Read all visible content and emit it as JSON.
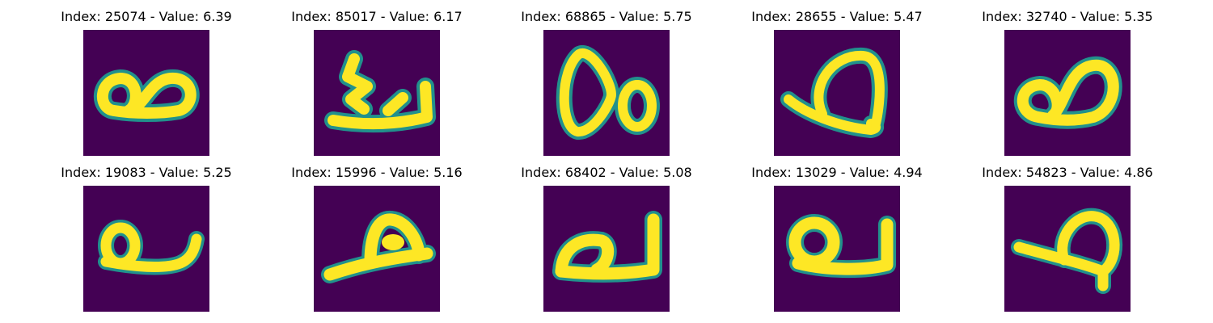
{
  "colors": {
    "background": "#440154",
    "mid": "#21918c",
    "foreground": "#fde725"
  },
  "panels": [
    {
      "title": "Index: 25074 - Value: 6.39",
      "glyph": "double-loop"
    },
    {
      "title": "Index: 85017 - Value: 6.17",
      "glyph": "zigzag-stroke"
    },
    {
      "title": "Index: 68865 - Value: 5.75",
      "glyph": "figure-eight"
    },
    {
      "title": "Index: 28655 - Value: 5.47",
      "glyph": "open-loop-with-tail"
    },
    {
      "title": "Index: 32740 - Value: 5.35",
      "glyph": "double-loop"
    },
    {
      "title": "Index: 19083 - Value: 5.25",
      "glyph": "loop-with-tail"
    },
    {
      "title": "Index: 15996 - Value: 5.16",
      "glyph": "hump-with-stroke"
    },
    {
      "title": "Index: 68402 - Value: 5.08",
      "glyph": "loop-with-tail"
    },
    {
      "title": "Index: 13029 - Value: 4.94",
      "glyph": "loop-with-tail"
    },
    {
      "title": "Index: 54823 - Value: 4.86",
      "glyph": "open-loop-with-tail"
    }
  ]
}
